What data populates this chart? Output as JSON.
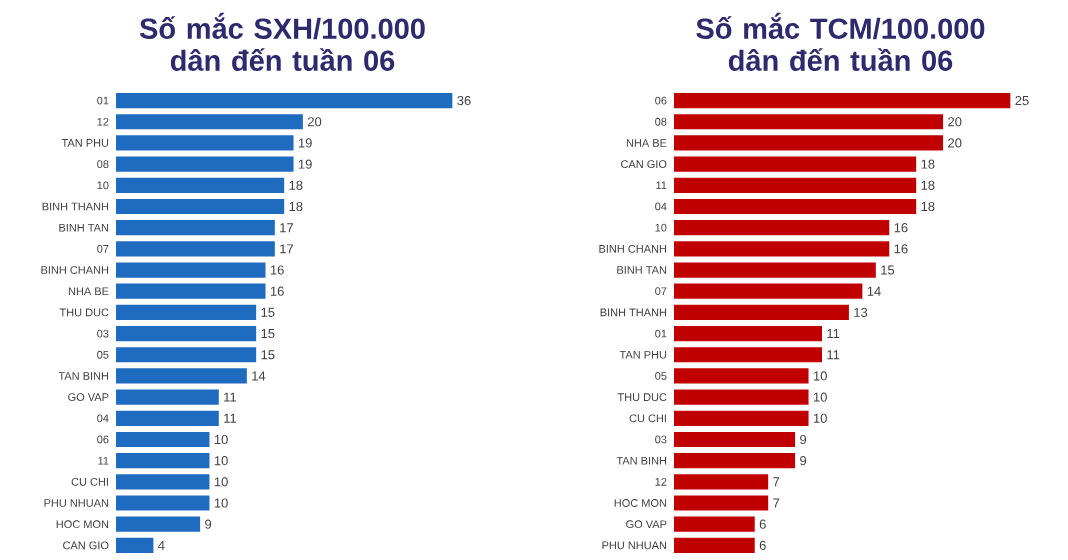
{
  "chart_data": [
    {
      "type": "bar",
      "orientation": "horizontal",
      "title": "Số mắc SXH/100.000 dân đến tuần 06",
      "color": "#1f6bbf",
      "data_labels": true,
      "categories": [
        "01",
        "12",
        "TAN PHU",
        "08",
        "10",
        "BINH THANH",
        "BINH TAN",
        "07",
        "BINH CHANH",
        "NHA BE",
        "THU DUC",
        "03",
        "05",
        "TAN BINH",
        "GO VAP",
        "04",
        "06",
        "11",
        "CU CHI",
        "PHU NHUAN",
        "HOC MON",
        "CAN GIO"
      ],
      "values": [
        36,
        20,
        19,
        19,
        18,
        18,
        17,
        17,
        16,
        16,
        15,
        15,
        15,
        14,
        11,
        11,
        10,
        10,
        10,
        10,
        9,
        4
      ]
    },
    {
      "type": "bar",
      "orientation": "horizontal",
      "title": "Số mắc TCM/100.000 dân đến tuần 06",
      "color": "#c00000",
      "data_labels": true,
      "categories": [
        "06",
        "08",
        "NHA BE",
        "CAN GIO",
        "11",
        "04",
        "10",
        "BINH CHANH",
        "BINH TAN",
        "07",
        "BINH THANH",
        "01",
        "TAN PHU",
        "05",
        "THU DUC",
        "CU CHI",
        "03",
        "TAN BINH",
        "12",
        "HOC MON",
        "GO VAP",
        "PHU NHUAN"
      ],
      "values": [
        25,
        20,
        20,
        18,
        18,
        18,
        16,
        16,
        15,
        14,
        13,
        11,
        11,
        10,
        10,
        10,
        9,
        9,
        7,
        7,
        6,
        6
      ]
    }
  ]
}
